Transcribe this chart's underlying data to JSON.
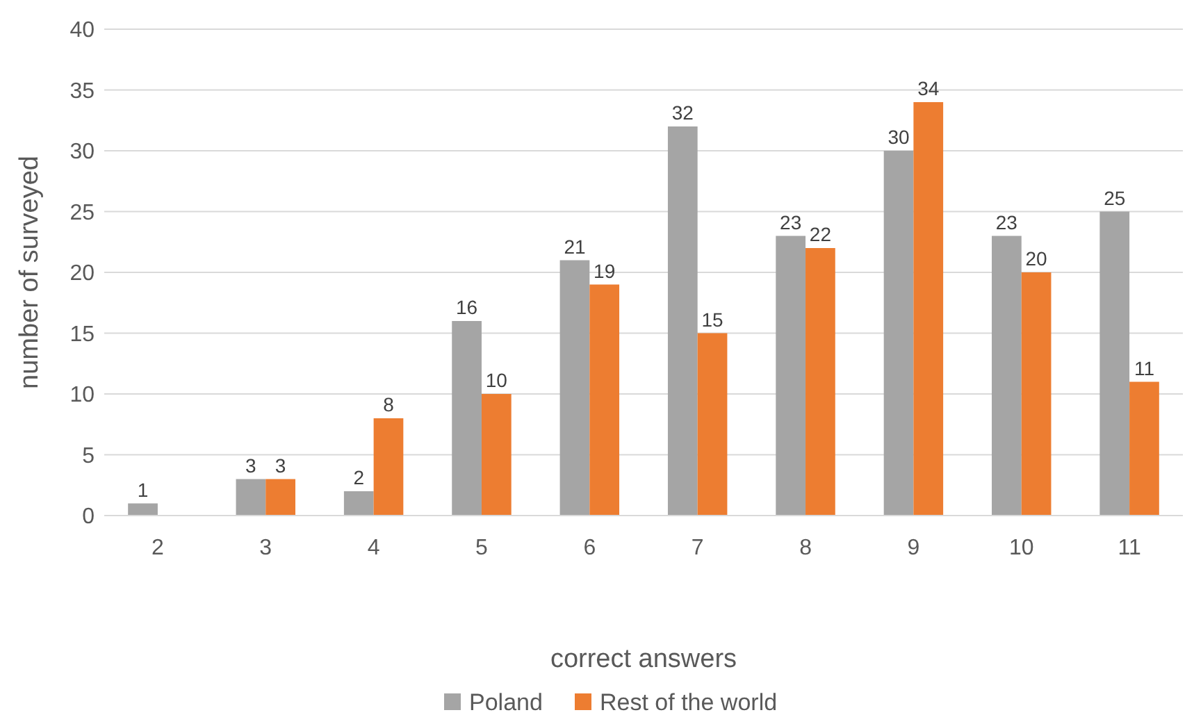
{
  "chart_data": {
    "type": "bar",
    "xlabel": "correct answers",
    "ylabel": "number of surveyed",
    "categories": [
      "2",
      "3",
      "4",
      "5",
      "6",
      "7",
      "8",
      "9",
      "10",
      "11"
    ],
    "series": [
      {
        "name": "Poland",
        "color": "#a5a5a5",
        "values": [
          1,
          3,
          2,
          16,
          21,
          32,
          23,
          30,
          23,
          25
        ]
      },
      {
        "name": "Rest of the world",
        "color": "#ed7d31",
        "values": [
          null,
          3,
          8,
          10,
          19,
          15,
          22,
          34,
          20,
          11
        ]
      }
    ],
    "ylim": [
      0,
      40
    ],
    "yticks": [
      0,
      5,
      10,
      15,
      20,
      25,
      30,
      35,
      40
    ],
    "grid": "y",
    "legend": "bottom",
    "data_labels": true
  }
}
